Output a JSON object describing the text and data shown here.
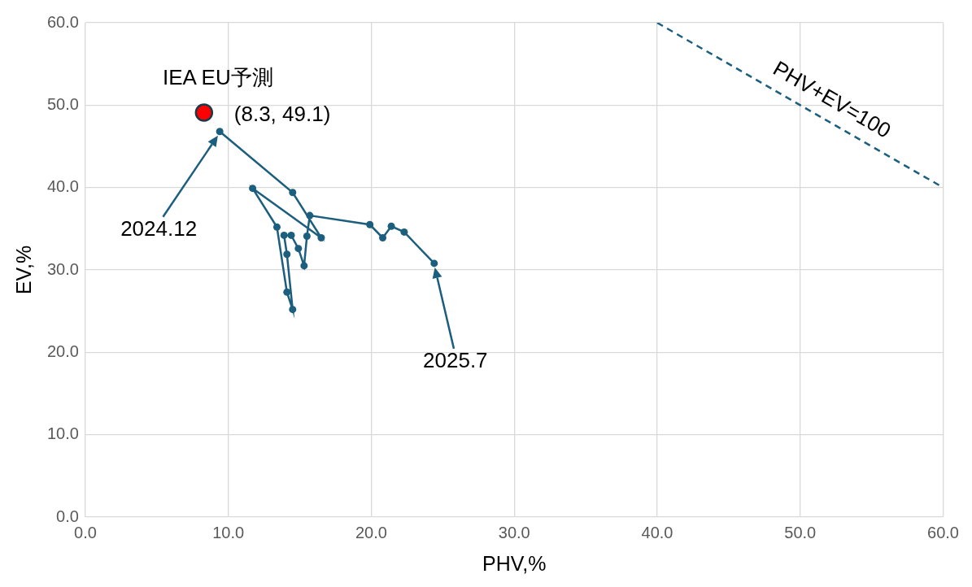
{
  "chart_data": {
    "type": "line",
    "xlabel": "PHV,%",
    "ylabel": "EV,%",
    "xlim": [
      0,
      60
    ],
    "ylim": [
      0,
      60
    ],
    "xticks": [
      {
        "value": 0,
        "label": "0.0"
      },
      {
        "value": 10,
        "label": "10.0"
      },
      {
        "value": 20,
        "label": "20.0"
      },
      {
        "value": 30,
        "label": "30.0"
      },
      {
        "value": 40,
        "label": "40.0"
      },
      {
        "value": 50,
        "label": "50.0"
      },
      {
        "value": 60,
        "label": "60.0"
      }
    ],
    "yticks": [
      {
        "value": 0,
        "label": "0.0"
      },
      {
        "value": 10,
        "label": "10.0"
      },
      {
        "value": 20,
        "label": "20.0"
      },
      {
        "value": 30,
        "label": "30.0"
      },
      {
        "value": 40,
        "label": "40.0"
      },
      {
        "value": 50,
        "label": "50.0"
      },
      {
        "value": 60,
        "label": "60.0"
      }
    ],
    "grid": true,
    "legend": false,
    "series": [
      {
        "type": "line",
        "marker": "circle",
        "color": "#1b5e7e",
        "x": [
          9.4,
          14.5,
          16.5,
          11.7,
          13.4,
          14.1,
          14.5,
          14.1,
          13.9,
          14.4,
          14.9,
          15.3,
          15.5,
          15.7,
          19.9,
          20.8,
          21.4,
          22.3,
          24.4
        ],
        "values": [
          46.8,
          39.4,
          33.9,
          39.9,
          35.2,
          27.3,
          25.2,
          31.9,
          34.2,
          34.2,
          32.6,
          30.5,
          34.1,
          36.6,
          35.5,
          33.9,
          35.3,
          34.6,
          30.8
        ]
      },
      {
        "type": "scatter",
        "name": "IEA EU予測",
        "marker": "circle",
        "color": "#ff0000",
        "x": [
          8.3
        ],
        "values": [
          49.1
        ],
        "value_labels": [
          "(8.3, 49.1)"
        ]
      },
      {
        "type": "line",
        "marker": "none",
        "line_style": "dashed",
        "color": "#1b5e7e",
        "x": [
          40,
          60
        ],
        "values": [
          60,
          40
        ]
      }
    ],
    "annotations": [
      "2024.12",
      "2025.7",
      {
        "text": "PHV+EV=100",
        "x": 51.5,
        "y": 48.5
      }
    ]
  }
}
